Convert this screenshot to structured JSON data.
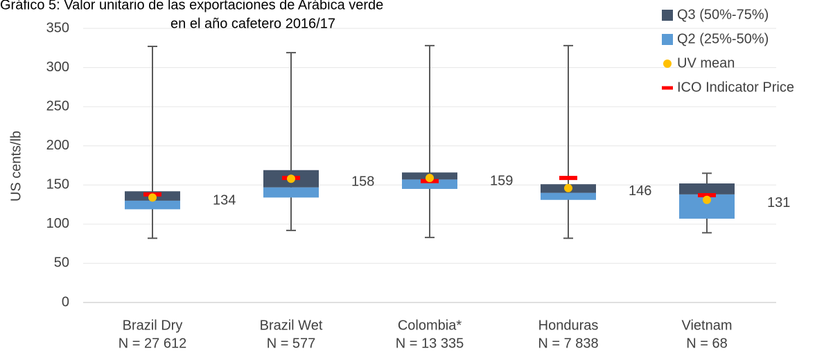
{
  "chart_data": {
    "type": "box",
    "title": [
      "Gráfico 5: Valor unitario de las exportaciones de Arábica verde",
      "en el año cafetero 2016/17"
    ],
    "y_label": "US cents/lb",
    "categories": [
      "Brazil Dry",
      "Brazil Wet",
      "Colombia*",
      "Honduras",
      "Vietnam"
    ],
    "sample_sizes": [
      "N = 27 612",
      "N = 577",
      "N = 13 335",
      "N = 7 838",
      "N = 68"
    ],
    "min": [
      82,
      92,
      83,
      82,
      89
    ],
    "q1": [
      119,
      134,
      145,
      131,
      107
    ],
    "median": [
      130,
      147,
      157,
      140,
      138
    ],
    "q3": [
      142,
      169,
      166,
      151,
      152
    ],
    "max": [
      327,
      319,
      328,
      328,
      165
    ],
    "mean": [
      134,
      158,
      159,
      146,
      131
    ],
    "ico_price": [
      138,
      159,
      155,
      159,
      137
    ],
    "legend": {
      "q3": "Q3 (50%-75%)",
      "q2": "Q2 (25%-50%)",
      "mean": "UV mean",
      "ico": "ICO Indicator Price"
    },
    "colors": {
      "q3": "#44546a",
      "q2": "#5b9bd5",
      "mean": "#ffc000",
      "ico": "#ff0000",
      "whisker": "#595959"
    },
    "ylim": [
      0,
      350
    ],
    "yticks": [
      0,
      50,
      100,
      150,
      200,
      250,
      300,
      350
    ],
    "grid": true,
    "legend_position": "top-right"
  }
}
